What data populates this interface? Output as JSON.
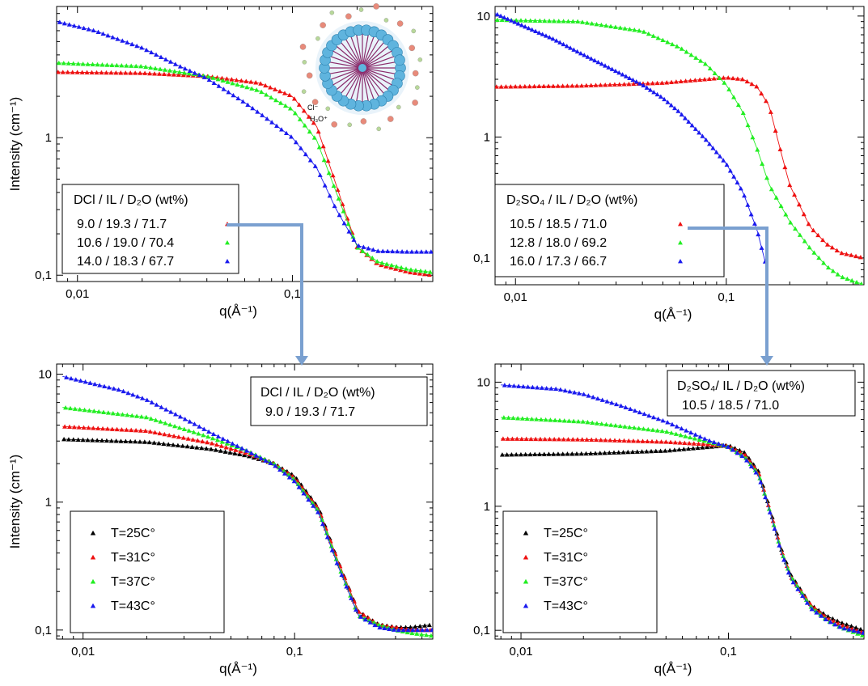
{
  "figure": {
    "connector_color": "#7aa0d0"
  },
  "chart_data": [
    {
      "id": "top-left",
      "type": "scatter",
      "xscale": "log",
      "yscale": "log",
      "xlim": [
        0.008,
        0.45
      ],
      "ylim": [
        0.09,
        9
      ],
      "xlabel": "q(Å⁻¹)",
      "ylabel": "Intensity (cm⁻¹)",
      "xticks": [
        {
          "v": 0.01,
          "label": "0,01"
        },
        {
          "v": 0.1,
          "label": "0,1"
        }
      ],
      "yticks": [
        {
          "v": 1,
          "label": "1"
        },
        {
          "v": 0.1,
          "label": "0,1"
        }
      ],
      "legend": {
        "placement": "center-left",
        "header_label": "DCl /   IL   / D₂O (wt%)"
      },
      "inset": {
        "ion_labels": [
          "Cl⁻",
          "H₃O⁺"
        ]
      },
      "series": [
        {
          "name": "9.0 / 19.3 / 71.7",
          "color": "#ee1111",
          "points": [
            [
              0.008,
              3.0
            ],
            [
              0.02,
              2.95
            ],
            [
              0.04,
              2.8
            ],
            [
              0.07,
              2.5
            ],
            [
              0.1,
              2.0
            ],
            [
              0.13,
              1.2
            ],
            [
              0.16,
              0.45
            ],
            [
              0.2,
              0.16
            ],
            [
              0.25,
              0.12
            ],
            [
              0.35,
              0.105
            ],
            [
              0.45,
              0.1
            ]
          ]
        },
        {
          "name": "10.6 / 19.0 / 70.4",
          "color": "#22ee22",
          "points": [
            [
              0.008,
              3.5
            ],
            [
              0.02,
              3.3
            ],
            [
              0.04,
              2.8
            ],
            [
              0.07,
              2.2
            ],
            [
              0.1,
              1.6
            ],
            [
              0.13,
              0.95
            ],
            [
              0.16,
              0.4
            ],
            [
              0.2,
              0.16
            ],
            [
              0.25,
              0.125
            ],
            [
              0.35,
              0.11
            ],
            [
              0.45,
              0.105
            ]
          ]
        },
        {
          "name": "14.0 / 18.3 / 67.7",
          "color": "#1a1aee",
          "points": [
            [
              0.008,
              7.0
            ],
            [
              0.012,
              6.0
            ],
            [
              0.02,
              4.5
            ],
            [
              0.03,
              3.3
            ],
            [
              0.04,
              2.7
            ],
            [
              0.06,
              1.8
            ],
            [
              0.08,
              1.3
            ],
            [
              0.1,
              1.0
            ],
            [
              0.13,
              0.6
            ],
            [
              0.16,
              0.3
            ],
            [
              0.2,
              0.165
            ],
            [
              0.25,
              0.15
            ],
            [
              0.35,
              0.148
            ],
            [
              0.45,
              0.148
            ]
          ]
        }
      ]
    },
    {
      "id": "top-right",
      "type": "scatter",
      "xscale": "log",
      "yscale": "log",
      "xlim": [
        0.008,
        0.45
      ],
      "ylim": [
        0.06,
        12
      ],
      "xlabel": "q(Å⁻¹)",
      "ylabel": "",
      "xticks": [
        {
          "v": 0.01,
          "label": "0,01"
        },
        {
          "v": 0.1,
          "label": "0,1"
        }
      ],
      "yticks": [
        {
          "v": 10,
          "label": "10"
        },
        {
          "v": 1,
          "label": "1"
        },
        {
          "v": 0.1,
          "label": "0,1"
        }
      ],
      "legend": {
        "placement": "center-left",
        "header_label": "D₂SO₄ /   IL   / D₂O (wt%)"
      },
      "series": [
        {
          "name": "10.5 / 18.5 / 71.0",
          "color": "#ee1111",
          "points": [
            [
              0.008,
              2.6
            ],
            [
              0.02,
              2.65
            ],
            [
              0.05,
              2.8
            ],
            [
              0.08,
              3.0
            ],
            [
              0.1,
              3.1
            ],
            [
              0.12,
              3.0
            ],
            [
              0.14,
              2.6
            ],
            [
              0.16,
              1.8
            ],
            [
              0.18,
              0.8
            ],
            [
              0.2,
              0.4
            ],
            [
              0.25,
              0.18
            ],
            [
              0.3,
              0.13
            ],
            [
              0.35,
              0.11
            ],
            [
              0.45,
              0.1
            ]
          ]
        },
        {
          "name": "12.8 / 18.0 / 69.2",
          "color": "#22ee22",
          "points": [
            [
              0.008,
              9.3
            ],
            [
              0.02,
              9.0
            ],
            [
              0.04,
              7.5
            ],
            [
              0.06,
              5.5
            ],
            [
              0.08,
              4.0
            ],
            [
              0.1,
              2.7
            ],
            [
              0.12,
              1.6
            ],
            [
              0.14,
              0.8
            ],
            [
              0.16,
              0.4
            ],
            [
              0.2,
              0.2
            ],
            [
              0.25,
              0.12
            ],
            [
              0.3,
              0.085
            ],
            [
              0.35,
              0.07
            ],
            [
              0.45,
              0.06
            ]
          ]
        },
        {
          "name": "16.0 / 17.3 / 66.7",
          "color": "#1a1aee",
          "points": [
            [
              0.008,
              10.5
            ],
            [
              0.015,
              6.5
            ],
            [
              0.02,
              5.0
            ],
            [
              0.03,
              3.5
            ],
            [
              0.04,
              2.7
            ],
            [
              0.05,
              2.1
            ],
            [
              0.06,
              1.6
            ],
            [
              0.08,
              0.95
            ],
            [
              0.1,
              0.6
            ],
            [
              0.12,
              0.35
            ],
            [
              0.14,
              0.17
            ],
            [
              0.155,
              0.085
            ]
          ]
        }
      ]
    },
    {
      "id": "bottom-left",
      "type": "scatter",
      "xscale": "log",
      "yscale": "log",
      "xlim": [
        0.0075,
        0.45
      ],
      "ylim": [
        0.085,
        12
      ],
      "xlabel": "q(Å⁻¹)",
      "ylabel": "Intensity (cm⁻¹)",
      "xticks": [
        {
          "v": 0.01,
          "label": "0,01"
        },
        {
          "v": 0.1,
          "label": "0,1"
        }
      ],
      "yticks": [
        {
          "v": 10,
          "label": "10"
        },
        {
          "v": 1,
          "label": "1"
        },
        {
          "v": 0.1,
          "label": "0,1"
        }
      ],
      "legend": {
        "placement": "bottom-left",
        "header_label": "DCl /   IL   / D₂O (wt%)",
        "header_value": "9.0 / 19.3 / 71.7"
      },
      "series": [
        {
          "name": "T=25C°",
          "color": "#000000",
          "points": [
            [
              0.008,
              3.1
            ],
            [
              0.02,
              2.95
            ],
            [
              0.04,
              2.6
            ],
            [
              0.06,
              2.3
            ],
            [
              0.08,
              2.0
            ],
            [
              0.1,
              1.6
            ],
            [
              0.13,
              0.9
            ],
            [
              0.16,
              0.35
            ],
            [
              0.2,
              0.14
            ],
            [
              0.25,
              0.11
            ],
            [
              0.3,
              0.105
            ],
            [
              0.35,
              0.105
            ],
            [
              0.45,
              0.11
            ]
          ]
        },
        {
          "name": "T=31C°",
          "color": "#ee1111",
          "points": [
            [
              0.008,
              3.9
            ],
            [
              0.02,
              3.6
            ],
            [
              0.04,
              2.9
            ],
            [
              0.06,
              2.4
            ],
            [
              0.08,
              2.0
            ],
            [
              0.1,
              1.55
            ],
            [
              0.13,
              0.88
            ],
            [
              0.16,
              0.35
            ],
            [
              0.2,
              0.14
            ],
            [
              0.25,
              0.11
            ],
            [
              0.3,
              0.105
            ],
            [
              0.35,
              0.1
            ],
            [
              0.45,
              0.1
            ]
          ]
        },
        {
          "name": "T=37C°",
          "color": "#22ee22",
          "points": [
            [
              0.008,
              5.5
            ],
            [
              0.02,
              4.6
            ],
            [
              0.04,
              3.2
            ],
            [
              0.06,
              2.5
            ],
            [
              0.08,
              2.0
            ],
            [
              0.1,
              1.5
            ],
            [
              0.13,
              0.85
            ],
            [
              0.16,
              0.33
            ],
            [
              0.2,
              0.13
            ],
            [
              0.25,
              0.11
            ],
            [
              0.3,
              0.1
            ],
            [
              0.35,
              0.095
            ],
            [
              0.45,
              0.09
            ]
          ]
        },
        {
          "name": "T=43C°",
          "color": "#1a1aee",
          "points": [
            [
              0.008,
              9.6
            ],
            [
              0.015,
              7.5
            ],
            [
              0.02,
              6.3
            ],
            [
              0.03,
              4.5
            ],
            [
              0.04,
              3.5
            ],
            [
              0.06,
              2.5
            ],
            [
              0.08,
              1.95
            ],
            [
              0.1,
              1.45
            ],
            [
              0.13,
              0.82
            ],
            [
              0.16,
              0.32
            ],
            [
              0.2,
              0.13
            ],
            [
              0.25,
              0.105
            ],
            [
              0.3,
              0.1
            ],
            [
              0.35,
              0.1
            ],
            [
              0.45,
              0.1
            ]
          ]
        }
      ]
    },
    {
      "id": "bottom-right",
      "type": "scatter",
      "xscale": "log",
      "yscale": "log",
      "xlim": [
        0.0075,
        0.45
      ],
      "ylim": [
        0.085,
        14
      ],
      "xlabel": "q(Å⁻¹)",
      "ylabel": "",
      "xticks": [
        {
          "v": 0.01,
          "label": "0,01"
        },
        {
          "v": 0.1,
          "label": "0,1"
        }
      ],
      "yticks": [
        {
          "v": 10,
          "label": "10"
        },
        {
          "v": 1,
          "label": "1"
        },
        {
          "v": 0.1,
          "label": "0,1"
        }
      ],
      "legend": {
        "placement": "bottom-left",
        "header_label": "D₂SO₄/   IL   / D₂O (wt%)",
        "header_value": "10.5  / 18.5 / 71.0"
      },
      "series": [
        {
          "name": "T=25C°",
          "color": "#000000",
          "points": [
            [
              0.008,
              2.6
            ],
            [
              0.02,
              2.65
            ],
            [
              0.05,
              2.8
            ],
            [
              0.08,
              3.0
            ],
            [
              0.1,
              3.1
            ],
            [
              0.12,
              2.7
            ],
            [
              0.14,
              1.9
            ],
            [
              0.16,
              0.9
            ],
            [
              0.18,
              0.45
            ],
            [
              0.2,
              0.28
            ],
            [
              0.25,
              0.16
            ],
            [
              0.3,
              0.13
            ],
            [
              0.35,
              0.115
            ],
            [
              0.45,
              0.1
            ]
          ]
        },
        {
          "name": "T=31C°",
          "color": "#ee1111",
          "points": [
            [
              0.008,
              3.5
            ],
            [
              0.02,
              3.45
            ],
            [
              0.05,
              3.3
            ],
            [
              0.08,
              3.15
            ],
            [
              0.1,
              3.05
            ],
            [
              0.12,
              2.6
            ],
            [
              0.14,
              1.85
            ],
            [
              0.16,
              0.88
            ],
            [
              0.18,
              0.44
            ],
            [
              0.2,
              0.27
            ],
            [
              0.25,
              0.16
            ],
            [
              0.3,
              0.125
            ],
            [
              0.35,
              0.11
            ],
            [
              0.45,
              0.095
            ]
          ]
        },
        {
          "name": "T=37C°",
          "color": "#22ee22",
          "points": [
            [
              0.008,
              5.2
            ],
            [
              0.02,
              4.8
            ],
            [
              0.05,
              4.0
            ],
            [
              0.08,
              3.3
            ],
            [
              0.1,
              3.0
            ],
            [
              0.12,
              2.5
            ],
            [
              0.14,
              1.8
            ],
            [
              0.16,
              0.86
            ],
            [
              0.18,
              0.43
            ],
            [
              0.2,
              0.27
            ],
            [
              0.25,
              0.155
            ],
            [
              0.3,
              0.12
            ],
            [
              0.35,
              0.105
            ],
            [
              0.45,
              0.09
            ]
          ]
        },
        {
          "name": "T=43C°",
          "color": "#1a1aee",
          "points": [
            [
              0.008,
              9.5
            ],
            [
              0.015,
              8.8
            ],
            [
              0.02,
              8.0
            ],
            [
              0.03,
              6.5
            ],
            [
              0.05,
              4.8
            ],
            [
              0.08,
              3.4
            ],
            [
              0.1,
              3.0
            ],
            [
              0.12,
              2.45
            ],
            [
              0.14,
              1.75
            ],
            [
              0.16,
              0.85
            ],
            [
              0.18,
              0.42
            ],
            [
              0.2,
              0.26
            ],
            [
              0.25,
              0.15
            ],
            [
              0.3,
              0.12
            ],
            [
              0.35,
              0.105
            ],
            [
              0.45,
              0.095
            ]
          ]
        }
      ]
    }
  ]
}
